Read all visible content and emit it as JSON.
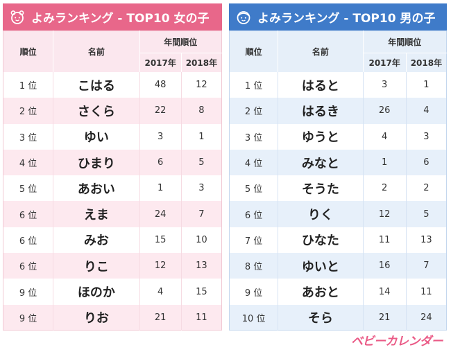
{
  "columns": {
    "rank": "順位",
    "name": "名前",
    "yearly": "年間順位",
    "y2017": "2017年",
    "y2018": "2018年"
  },
  "girls": {
    "title": "よみランキング - TOP10 女の子",
    "header_color": "#e8678a",
    "rows": [
      {
        "rank": "1 位",
        "name": "こはる",
        "y2017": "48",
        "y2018": "12"
      },
      {
        "rank": "2 位",
        "name": "さくら",
        "y2017": "22",
        "y2018": "8"
      },
      {
        "rank": "3 位",
        "name": "ゆい",
        "y2017": "3",
        "y2018": "1"
      },
      {
        "rank": "4 位",
        "name": "ひまり",
        "y2017": "6",
        "y2018": "5"
      },
      {
        "rank": "5 位",
        "name": "あおい",
        "y2017": "1",
        "y2018": "3"
      },
      {
        "rank": "6 位",
        "name": "えま",
        "y2017": "24",
        "y2018": "7"
      },
      {
        "rank": "6 位",
        "name": "みお",
        "y2017": "15",
        "y2018": "10"
      },
      {
        "rank": "6 位",
        "name": "りこ",
        "y2017": "12",
        "y2018": "13"
      },
      {
        "rank": "9 位",
        "name": "ほのか",
        "y2017": "4",
        "y2018": "15"
      },
      {
        "rank": "9 位",
        "name": "りお",
        "y2017": "21",
        "y2018": "11"
      }
    ]
  },
  "boys": {
    "title": "よみランキング - TOP10 男の子",
    "header_color": "#3f7bc9",
    "rows": [
      {
        "rank": "1 位",
        "name": "はると",
        "y2017": "3",
        "y2018": "1"
      },
      {
        "rank": "2 位",
        "name": "はるき",
        "y2017": "26",
        "y2018": "4"
      },
      {
        "rank": "3 位",
        "name": "ゆうと",
        "y2017": "4",
        "y2018": "3"
      },
      {
        "rank": "4 位",
        "name": "みなと",
        "y2017": "1",
        "y2018": "6"
      },
      {
        "rank": "5 位",
        "name": "そうた",
        "y2017": "2",
        "y2018": "2"
      },
      {
        "rank": "6 位",
        "name": "りく",
        "y2017": "12",
        "y2018": "5"
      },
      {
        "rank": "7 位",
        "name": "ひなた",
        "y2017": "11",
        "y2018": "13"
      },
      {
        "rank": "8 位",
        "name": "ゆいと",
        "y2017": "16",
        "y2018": "7"
      },
      {
        "rank": "9 位",
        "name": "あおと",
        "y2017": "14",
        "y2018": "11"
      },
      {
        "rank": "10 位",
        "name": "そら",
        "y2017": "21",
        "y2018": "24"
      }
    ]
  },
  "logo": {
    "text": "ベビーカレンダー",
    "icon": "girl-face-icon / boy-face-icon"
  }
}
